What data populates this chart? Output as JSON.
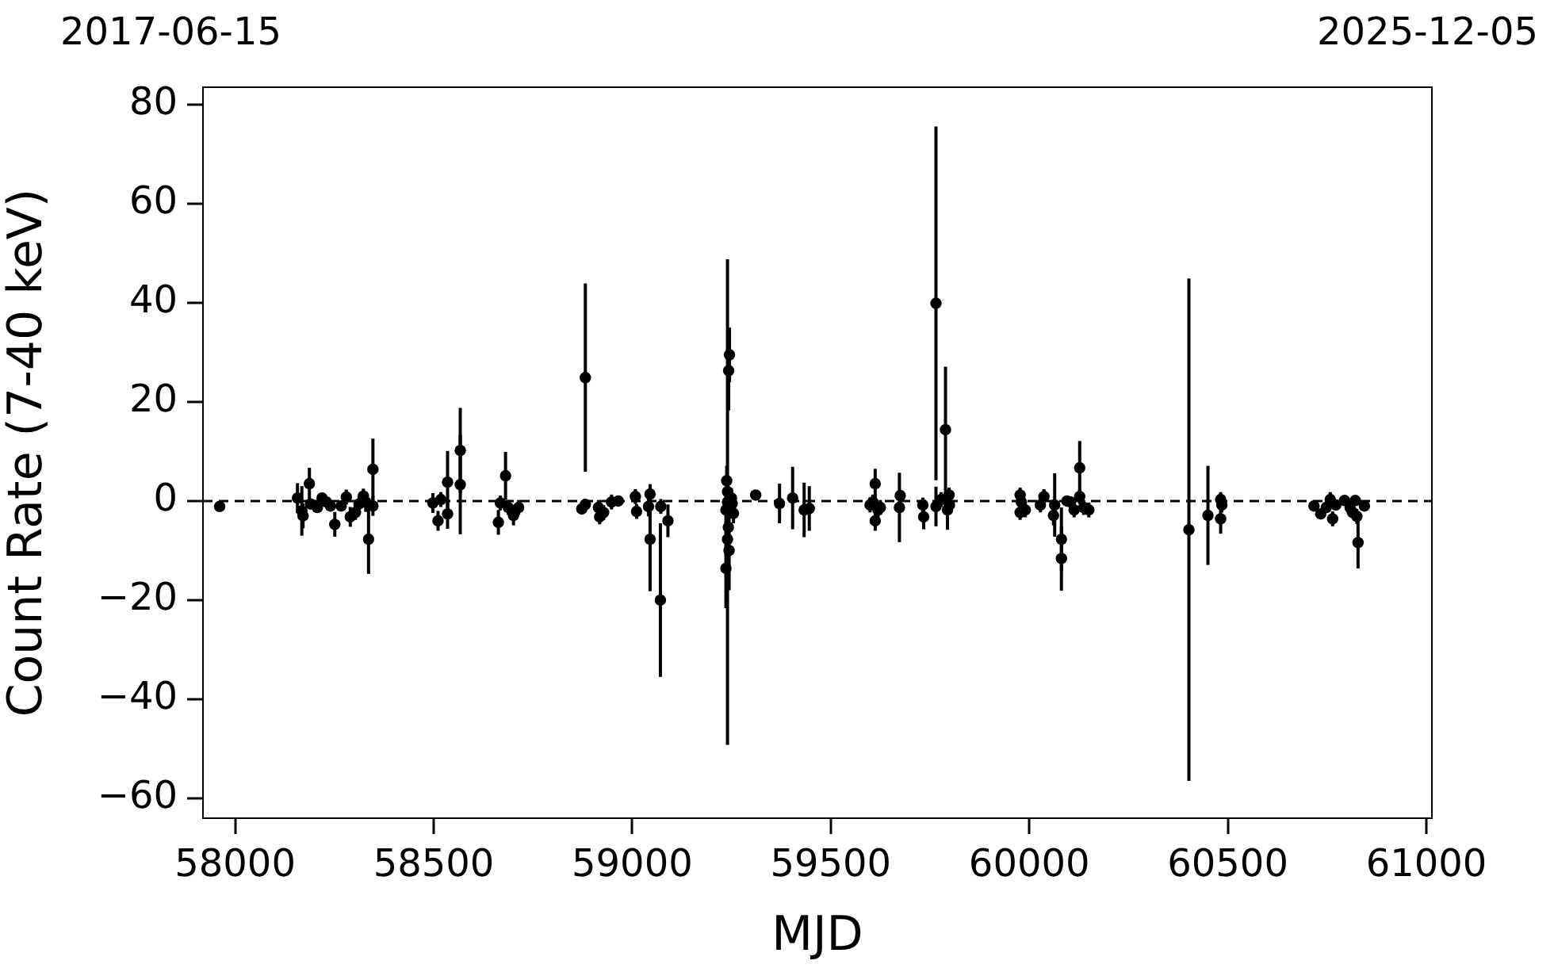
{
  "chart_data": {
    "type": "scatter",
    "xlabel": "MJD",
    "ylabel": "Count Rate (7-40 keV)",
    "annotations": [
      "2017-06-15",
      "2025-12-05"
    ],
    "x": [
      57961,
      58157,
      58168,
      58171,
      58187,
      58190,
      58207,
      58219,
      58230,
      58240,
      58251,
      58267,
      58280,
      58290,
      58303,
      58312,
      58323,
      58329,
      58336,
      58347,
      58347,
      58498,
      58511,
      58518,
      58535,
      58535,
      58567,
      58567,
      58663,
      58668,
      58681,
      58688,
      58701,
      58714,
      58873,
      58882,
      58882,
      58915,
      58918,
      58928,
      58948,
      58965,
      59008,
      59011,
      59041,
      59045,
      59045,
      59072,
      59071,
      59090,
      59240,
      59245,
      59243,
      59238,
      59240,
      59236,
      59242,
      59240,
      59244,
      59236,
      59250,
      59252,
      59255,
      59311,
      59371,
      59404,
      59433,
      59446,
      59599,
      59606,
      59612,
      59612,
      59619,
      59625,
      59673,
      59675,
      59732,
      59734,
      59765,
      59765,
      59778,
      59789,
      59794,
      59798,
      59799,
      59977,
      59980,
      59977,
      59990,
      60028,
      60037,
      60061,
      60064,
      60081,
      60081,
      60095,
      60104,
      60113,
      60127,
      60127,
      60137,
      60150,
      60402,
      60450,
      60482,
      60485,
      60482,
      60717,
      60734,
      60748,
      60758,
      60764,
      60772,
      60794,
      60808,
      60814,
      60821,
      60825,
      60828,
      60844
    ],
    "values": [
      -1.1,
      0.6,
      -2,
      -3,
      3.5,
      -0.6,
      -1.3,
      0.6,
      -0.2,
      -1,
      -4.7,
      -1,
      0.8,
      -3.2,
      -2.3,
      -0.6,
      1,
      -0.2,
      -7.7,
      6.4,
      -1,
      -0.4,
      -4,
      0.3,
      3.8,
      -2.6,
      10.2,
      3.3,
      -4.3,
      -0.4,
      5.1,
      -1.3,
      -2.9,
      -1.3,
      -1.6,
      24.9,
      -0.7,
      -1.3,
      -3.2,
      -2.3,
      -0.2,
      0,
      0.9,
      -2.1,
      -1.1,
      1.4,
      -7.7,
      -1.1,
      -20,
      -4,
      -0.2,
      29.5,
      26.3,
      4.1,
      1.9,
      -1.8,
      -5.3,
      -7.7,
      -10,
      -13.6,
      0.6,
      -0.5,
      -2.5,
      1.2,
      -0.5,
      0.6,
      -1.8,
      -1.5,
      -0.8,
      -0.2,
      3.5,
      -4,
      -1.8,
      -1.3,
      -1.3,
      1.1,
      -0.8,
      -3.2,
      39.9,
      -1.1,
      0.3,
      14.4,
      -1.8,
      1.2,
      -0.8,
      1.2,
      -0.2,
      -2.3,
      -1.8,
      -0.8,
      0.9,
      -2.9,
      -0.8,
      -7.7,
      -11.6,
      0,
      -0.2,
      -1.8,
      6.7,
      0.9,
      -1.3,
      -1.8,
      -5.8,
      -2.9,
      0.3,
      -0.8,
      -3.6,
      -1,
      -2.6,
      -1.3,
      0.3,
      -3.6,
      -0.8,
      0.1,
      -1.3,
      -2.3,
      0.1,
      -3.1,
      -8.4,
      -1
    ],
    "errors": [
      0.8,
      3,
      5,
      2.5,
      3.2,
      1,
      1,
      1,
      1,
      1,
      2.5,
      1,
      1.5,
      2,
      1.5,
      1.5,
      1.5,
      2,
      7,
      6.2,
      2,
      2,
      2,
      1.5,
      6.3,
      3,
      8.6,
      10,
      2.5,
      1.5,
      4.8,
      1.5,
      2,
      1.5,
      1,
      19,
      1,
      1.5,
      1.5,
      1.5,
      1.5,
      1,
      1.5,
      1.5,
      2,
      2,
      10.5,
      1.5,
      15.5,
      3.3,
      49,
      5.5,
      8,
      3,
      2,
      3,
      4,
      6,
      8,
      8,
      2,
      2,
      2,
      1,
      4,
      6.3,
      5.5,
      4.5,
      1.5,
      1.5,
      3,
      2,
      1.5,
      1.5,
      7,
      1,
      1.5,
      2.5,
      35.7,
      4,
      1.5,
      12.7,
      4,
      1.5,
      1.5,
      1.5,
      1.5,
      1.5,
      1.5,
      1.5,
      1.5,
      2,
      6.4,
      6.4,
      6.5,
      1,
      1,
      1.5,
      5.4,
      1.5,
      1.5,
      1.5,
      50.7,
      10,
      1.5,
      1.5,
      3,
      1,
      1,
      1,
      1.5,
      1.5,
      1,
      1,
      1,
      1,
      1,
      1.5,
      5.2,
      1
    ],
    "color": "#000000",
    "marker": "circle",
    "xlim": [
      57919,
      61014
    ],
    "xticks": [
      58000,
      58500,
      59000,
      59500,
      60000,
      60500,
      61000
    ],
    "ylim": [
      -64,
      83.5
    ],
    "yticks": [
      {
        "value": -60,
        "label": "−60"
      },
      {
        "value": -40,
        "label": "−40"
      },
      {
        "value": -20,
        "label": "−20"
      },
      0,
      20,
      40,
      60,
      80
    ],
    "ref_lines": [
      {
        "axis": "y",
        "value": 0,
        "color": "#000000",
        "line_style": "dashed"
      }
    ]
  }
}
